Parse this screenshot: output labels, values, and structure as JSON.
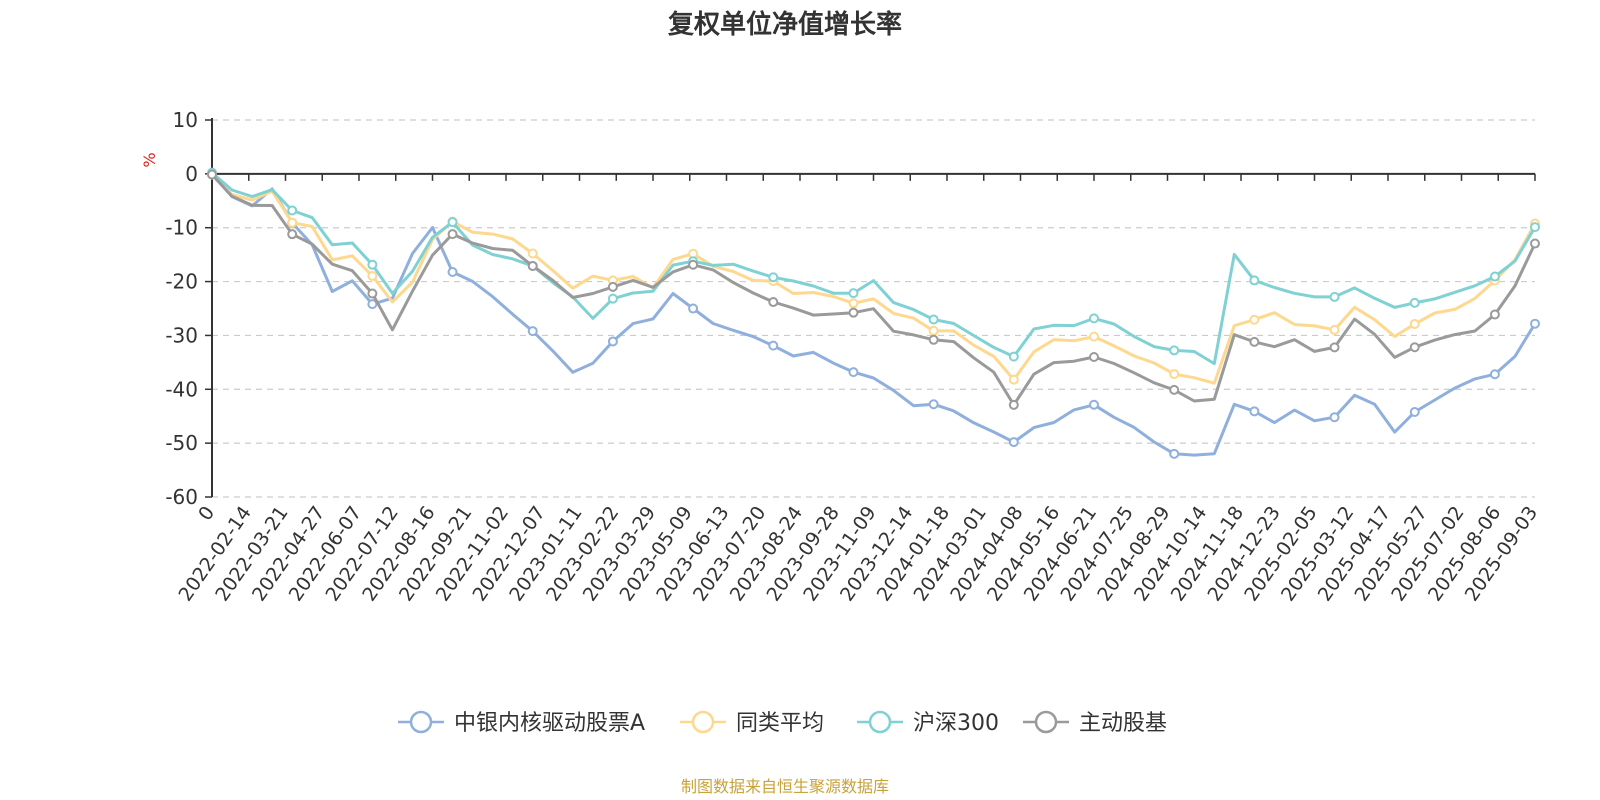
{
  "chart_data": {
    "type": "line",
    "title": "复权单位净值增长率",
    "ylabel": "%",
    "ylim": [
      -60,
      10
    ],
    "yticks": [
      10,
      0,
      -10,
      -20,
      -30,
      -40,
      -50,
      -60
    ],
    "grid": true,
    "legend_position": "bottom",
    "x_first_label": "0",
    "x_tick_labels": [
      "2022-02-14",
      "2022-03-21",
      "2022-04-27",
      "2022-06-07",
      "2022-07-12",
      "2022-08-16",
      "2022-09-21",
      "2022-11-02",
      "2022-12-07",
      "2023-01-11",
      "2023-02-22",
      "2023-03-29",
      "2023-05-09",
      "2023-06-13",
      "2023-07-20",
      "2023-08-24",
      "2023-09-28",
      "2023-11-09",
      "2023-12-14",
      "2024-01-18",
      "2024-03-01",
      "2024-04-08",
      "2024-05-16",
      "2024-06-21",
      "2024-07-25",
      "2024-08-29",
      "2024-10-14",
      "2024-11-18",
      "2024-12-23",
      "2025-02-05",
      "2025-03-12",
      "2025-04-17",
      "2025-05-27",
      "2025-07-02",
      "2025-08-06",
      "2025-09-03"
    ],
    "series": [
      {
        "name": "中银内核驱动股票A",
        "color": "#8fafdc",
        "values": [
          0,
          -4,
          -6,
          -3,
          -9,
          -13,
          -22,
          -20,
          -24,
          -23,
          -15,
          -10,
          -18,
          -20,
          -23,
          -26,
          -29,
          -33,
          -37,
          -35,
          -31,
          -28,
          -27,
          -22,
          -25,
          -28,
          -29,
          -30,
          -32,
          -34,
          -33,
          -35,
          -37,
          -38,
          -40,
          -43,
          -43,
          -44,
          -46,
          -48,
          -50,
          -47,
          -46,
          -44,
          -43,
          -45,
          -47,
          -50,
          -52,
          -52,
          -52,
          -43,
          -44,
          -46,
          -44,
          -46,
          -45,
          -41,
          -43,
          -48,
          -44,
          -42,
          -40,
          -38,
          -37,
          -34,
          -28
        ]
      },
      {
        "name": "同类平均",
        "color": "#fdd88e",
        "values": [
          0,
          -4,
          -5,
          -3,
          -9,
          -10,
          -16,
          -15,
          -19,
          -24,
          -20,
          -12,
          -9,
          -11,
          -11,
          -12,
          -15,
          -18,
          -21,
          -19,
          -20,
          -19,
          -21,
          -16,
          -15,
          -17,
          -18,
          -20,
          -20,
          -22,
          -22,
          -23,
          -24,
          -23,
          -26,
          -27,
          -29,
          -29,
          -32,
          -34,
          -38,
          -33,
          -31,
          -31,
          -30,
          -32,
          -34,
          -35,
          -37,
          -38,
          -39,
          -28,
          -27,
          -26,
          -28,
          -28,
          -29,
          -25,
          -27,
          -30,
          -28,
          -26,
          -25,
          -23,
          -20,
          -16,
          -9
        ]
      },
      {
        "name": "沪深300",
        "color": "#7fd1d4",
        "values": [
          0,
          -3,
          -4,
          -3,
          -7,
          -8,
          -13,
          -13,
          -17,
          -22,
          -18,
          -12,
          -9,
          -13,
          -15,
          -16,
          -17,
          -20,
          -23,
          -27,
          -23,
          -22,
          -22,
          -17,
          -16,
          -17,
          -17,
          -18,
          -19,
          -20,
          -21,
          -22,
          -22,
          -20,
          -24,
          -25,
          -27,
          -28,
          -30,
          -32,
          -34,
          -29,
          -28,
          -28,
          -27,
          -28,
          -30,
          -32,
          -33,
          -33,
          -35,
          -15,
          -20,
          -21,
          -22,
          -23,
          -23,
          -21,
          -23,
          -25,
          -24,
          -23,
          -22,
          -21,
          -19,
          -16,
          -10
        ]
      },
      {
        "name": "主动股基",
        "color": "#9a9a9a",
        "values": [
          0,
          -4,
          -6,
          -6,
          -11,
          -13,
          -17,
          -18,
          -22,
          -29,
          -22,
          -15,
          -11,
          -13,
          -14,
          -14,
          -17,
          -20,
          -23,
          -22,
          -21,
          -20,
          -21,
          -18,
          -17,
          -18,
          -20,
          -22,
          -24,
          -25,
          -26,
          -26,
          -26,
          -25,
          -29,
          -30,
          -31,
          -31,
          -34,
          -37,
          -43,
          -37,
          -35,
          -35,
          -34,
          -35,
          -37,
          -39,
          -40,
          -42,
          -42,
          -30,
          -31,
          -32,
          -31,
          -33,
          -32,
          -27,
          -30,
          -34,
          -32,
          -31,
          -30,
          -29,
          -26,
          -21,
          -13
        ]
      }
    ]
  },
  "footer": {
    "source": "制图数据来自恒生聚源数据库"
  }
}
